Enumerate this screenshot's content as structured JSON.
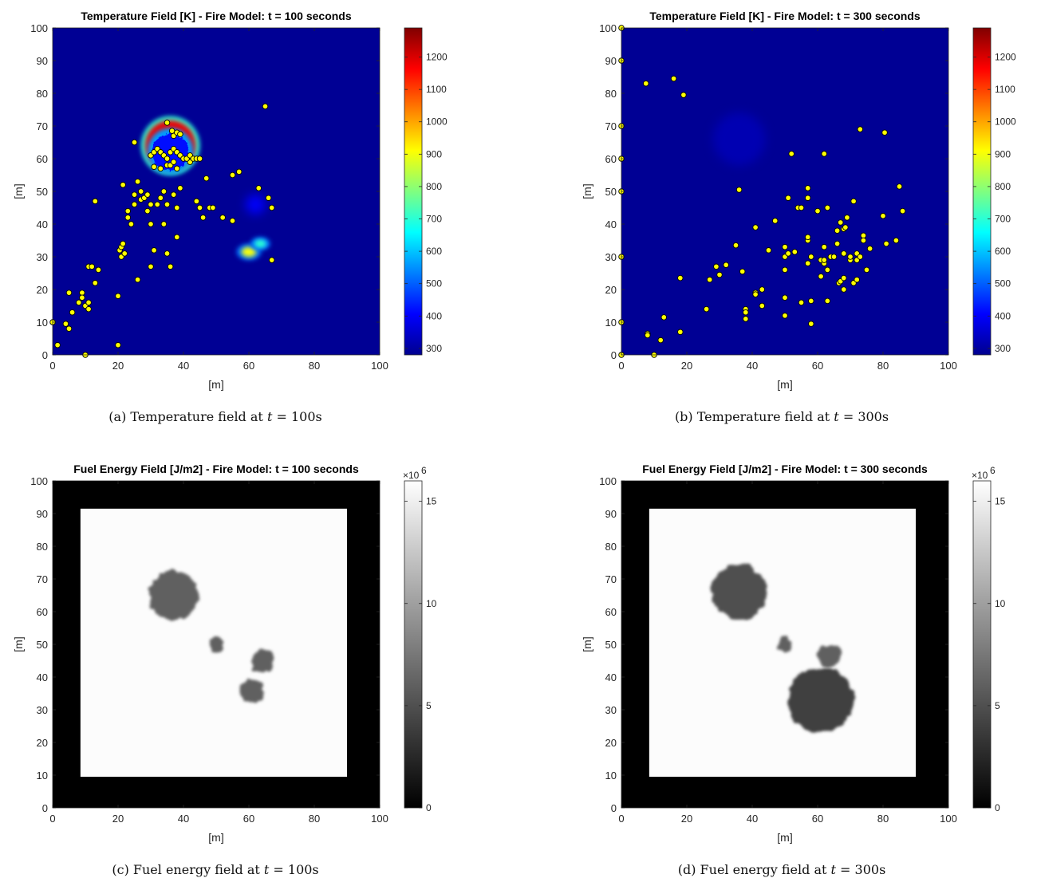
{
  "chart_data": [
    {
      "type": "heatmap",
      "title": "Temperature Field [K] - Fire Model: t = 100 seconds",
      "xlabel": "[m]",
      "ylabel": "[m]",
      "xlim": [
        0,
        100
      ],
      "ylim": [
        0,
        100
      ],
      "xticks": [
        0,
        20,
        40,
        60,
        80,
        100
      ],
      "yticks": [
        0,
        10,
        20,
        30,
        40,
        50,
        60,
        70,
        80,
        90,
        100
      ],
      "colormap": "jet",
      "clim": [
        280,
        1290
      ],
      "colorbar_ticks": [
        300,
        400,
        500,
        600,
        700,
        800,
        900,
        1000,
        1100,
        1200
      ],
      "background_value": 300,
      "hotspots": [
        {
          "x": 36,
          "y": 64,
          "r": 9,
          "peak": 1200,
          "shape": "ring"
        },
        {
          "x": 60,
          "y": 31.5,
          "r": 2.5,
          "peak": 900
        },
        {
          "x": 63.5,
          "y": 34,
          "r": 2,
          "peak": 700
        },
        {
          "x": 62,
          "y": 46,
          "r": 3,
          "peak": 400
        }
      ],
      "points": [
        [
          0,
          10
        ],
        [
          1.5,
          3
        ],
        [
          4,
          9.5
        ],
        [
          5,
          8
        ],
        [
          5,
          19
        ],
        [
          6,
          13
        ],
        [
          8,
          16
        ],
        [
          9,
          19
        ],
        [
          9,
          17.5
        ],
        [
          10,
          15
        ],
        [
          10,
          0
        ],
        [
          11,
          16
        ],
        [
          11,
          14
        ],
        [
          11,
          27
        ],
        [
          12,
          27
        ],
        [
          13,
          22
        ],
        [
          14,
          26
        ],
        [
          13,
          47
        ],
        [
          20,
          3
        ],
        [
          20,
          18
        ],
        [
          20.5,
          32
        ],
        [
          21,
          33
        ],
        [
          21,
          30
        ],
        [
          21.5,
          34
        ],
        [
          21.5,
          52
        ],
        [
          22,
          31
        ],
        [
          23,
          44
        ],
        [
          23,
          42
        ],
        [
          24,
          40
        ],
        [
          25,
          46
        ],
        [
          25,
          49
        ],
        [
          26,
          53
        ],
        [
          27,
          47.5
        ],
        [
          26,
          23
        ],
        [
          27,
          50
        ],
        [
          28,
          48
        ],
        [
          29,
          44
        ],
        [
          29,
          49
        ],
        [
          30,
          46
        ],
        [
          30,
          40
        ],
        [
          30,
          27
        ],
        [
          31,
          32
        ],
        [
          32,
          46
        ],
        [
          33,
          48
        ],
        [
          34,
          40
        ],
        [
          34,
          50
        ],
        [
          35,
          46
        ],
        [
          35,
          31
        ],
        [
          36,
          27
        ],
        [
          37,
          49
        ],
        [
          38,
          45
        ],
        [
          38,
          36
        ],
        [
          39,
          51
        ],
        [
          42,
          59
        ],
        [
          44,
          47
        ],
        [
          45,
          45
        ],
        [
          46,
          42
        ],
        [
          47,
          54
        ],
        [
          48,
          45
        ],
        [
          49,
          45
        ],
        [
          52,
          42
        ],
        [
          55,
          41
        ],
        [
          55,
          55
        ],
        [
          57,
          56
        ],
        [
          63,
          51
        ],
        [
          65,
          76
        ],
        [
          66,
          48
        ],
        [
          67,
          29
        ],
        [
          67,
          45
        ],
        [
          25,
          65
        ],
        [
          35,
          71
        ],
        [
          37,
          67
        ],
        [
          36.5,
          68.5
        ],
        [
          38,
          68
        ],
        [
          39,
          67.5
        ],
        [
          30,
          61
        ],
        [
          31,
          62
        ],
        [
          32,
          63
        ],
        [
          33,
          62
        ],
        [
          34,
          61
        ],
        [
          35,
          60
        ],
        [
          36,
          62
        ],
        [
          37,
          63
        ],
        [
          38,
          62
        ],
        [
          39,
          61
        ],
        [
          40,
          60
        ],
        [
          41,
          60
        ],
        [
          42,
          61
        ],
        [
          43,
          60
        ],
        [
          44,
          60
        ],
        [
          45,
          60
        ],
        [
          31,
          57.5
        ],
        [
          33,
          57
        ],
        [
          35,
          58
        ],
        [
          36,
          58
        ],
        [
          37,
          59
        ],
        [
          38,
          57
        ]
      ]
    },
    {
      "type": "heatmap",
      "title": "Temperature Field [K] - Fire Model: t = 300 seconds",
      "xlabel": "[m]",
      "ylabel": "[m]",
      "xlim": [
        0,
        100
      ],
      "ylim": [
        0,
        100
      ],
      "xticks": [
        0,
        20,
        40,
        60,
        80,
        100
      ],
      "yticks": [
        0,
        10,
        20,
        30,
        40,
        50,
        60,
        70,
        80,
        90,
        100
      ],
      "colormap": "jet",
      "clim": [
        280,
        1290
      ],
      "colorbar_ticks": [
        300,
        400,
        500,
        600,
        700,
        800,
        900,
        1000,
        1100,
        1200
      ],
      "background_value": 300,
      "hotspots": [
        {
          "x": 36,
          "y": 66,
          "r": 8,
          "peak": 330
        }
      ],
      "points": [
        [
          0,
          100
        ],
        [
          0,
          90
        ],
        [
          0,
          70
        ],
        [
          0,
          60
        ],
        [
          0,
          50
        ],
        [
          0,
          30
        ],
        [
          0,
          10
        ],
        [
          0,
          0
        ],
        [
          7.5,
          83
        ],
        [
          16,
          84.5
        ],
        [
          19,
          79.5
        ],
        [
          8,
          6.5
        ],
        [
          8,
          6
        ],
        [
          10,
          0
        ],
        [
          12,
          4.5
        ],
        [
          13,
          11.5
        ],
        [
          18,
          7
        ],
        [
          18,
          23.5
        ],
        [
          26,
          14
        ],
        [
          27,
          23
        ],
        [
          29,
          27
        ],
        [
          30,
          24.5
        ],
        [
          32,
          27.5
        ],
        [
          35,
          33.5
        ],
        [
          36,
          50.5
        ],
        [
          37,
          25.5
        ],
        [
          38,
          11
        ],
        [
          38,
          14
        ],
        [
          38,
          13
        ],
        [
          41,
          19
        ],
        [
          41,
          39
        ],
        [
          41,
          18.5
        ],
        [
          43,
          20
        ],
        [
          43,
          15
        ],
        [
          45,
          32
        ],
        [
          47,
          41
        ],
        [
          50,
          12
        ],
        [
          50,
          33
        ],
        [
          50,
          17.5
        ],
        [
          50,
          30
        ],
        [
          50,
          26
        ],
        [
          51,
          48
        ],
        [
          51,
          31
        ],
        [
          52,
          61.5
        ],
        [
          53,
          31.5
        ],
        [
          54,
          45
        ],
        [
          55,
          45
        ],
        [
          55,
          16
        ],
        [
          57,
          35
        ],
        [
          57,
          36
        ],
        [
          57,
          48
        ],
        [
          57,
          51
        ],
        [
          57,
          28
        ],
        [
          58,
          30
        ],
        [
          58,
          16.5
        ],
        [
          58,
          9.5
        ],
        [
          60,
          44
        ],
        [
          61,
          29
        ],
        [
          61,
          24
        ],
        [
          62,
          61.5
        ],
        [
          62,
          33
        ],
        [
          62,
          28
        ],
        [
          62,
          29
        ],
        [
          63,
          26
        ],
        [
          63,
          45
        ],
        [
          63,
          16.5
        ],
        [
          64,
          30
        ],
        [
          65,
          30
        ],
        [
          66,
          34
        ],
        [
          66,
          38
        ],
        [
          66.5,
          22
        ],
        [
          67,
          40.5
        ],
        [
          67,
          22.5
        ],
        [
          68,
          23.5
        ],
        [
          68,
          20
        ],
        [
          68,
          31
        ],
        [
          68,
          38.5
        ],
        [
          68.5,
          39
        ],
        [
          69,
          42
        ],
        [
          70,
          29
        ],
        [
          70,
          30
        ],
        [
          71,
          47
        ],
        [
          71,
          22
        ],
        [
          72,
          23
        ],
        [
          72,
          29
        ],
        [
          72,
          31
        ],
        [
          73,
          69
        ],
        [
          73,
          30
        ],
        [
          74,
          36.5
        ],
        [
          74,
          35
        ],
        [
          75,
          26
        ],
        [
          76,
          32.5
        ],
        [
          80,
          42.5
        ],
        [
          80.5,
          68
        ],
        [
          81,
          34
        ],
        [
          84,
          35
        ],
        [
          85,
          51.5
        ],
        [
          86,
          44
        ]
      ]
    },
    {
      "type": "heatmap",
      "title": "Fuel Energy Field [J/m2] - Fire Model: t = 100 seconds",
      "xlabel": "[m]",
      "ylabel": "[m]",
      "xlim": [
        0,
        100
      ],
      "ylim": [
        0,
        100
      ],
      "xticks": [
        0,
        20,
        40,
        60,
        80,
        100
      ],
      "yticks": [
        0,
        10,
        20,
        30,
        40,
        50,
        60,
        70,
        80,
        90,
        100
      ],
      "colormap": "gray",
      "clim": [
        0,
        16
      ],
      "colorbar_ticks": [
        0,
        5,
        10,
        15
      ],
      "colorbar_multiplier": "×10",
      "colorbar_exponent": "6",
      "fuel_region": {
        "x": [
          8.5,
          90
        ],
        "y": [
          9.5,
          91.5
        ],
        "value": 16
      },
      "depleted_patches": [
        {
          "x": 37,
          "y": 65,
          "r": 7.5,
          "value": 6
        },
        {
          "x": 50,
          "y": 50,
          "r": 2.2,
          "value": 6
        },
        {
          "x": 64,
          "y": 45,
          "r": 3.5,
          "value": 6
        },
        {
          "x": 61,
          "y": 35.5,
          "r": 3.8,
          "value": 6
        }
      ]
    },
    {
      "type": "heatmap",
      "title": "Fuel Energy Field [J/m2] - Fire Model: t = 300 seconds",
      "xlabel": "[m]",
      "ylabel": "[m]",
      "xlim": [
        0,
        100
      ],
      "ylim": [
        0,
        100
      ],
      "xticks": [
        0,
        20,
        40,
        60,
        80,
        100
      ],
      "yticks": [
        0,
        10,
        20,
        30,
        40,
        50,
        60,
        70,
        80,
        90,
        100
      ],
      "colormap": "gray",
      "clim": [
        0,
        16
      ],
      "colorbar_ticks": [
        0,
        5,
        10,
        15
      ],
      "colorbar_multiplier": "×10",
      "colorbar_exponent": "6",
      "fuel_region": {
        "x": [
          8.5,
          90
        ],
        "y": [
          9.5,
          91.5
        ],
        "value": 16
      },
      "depleted_patches": [
        {
          "x": 36,
          "y": 66,
          "r": 8.5,
          "value": 5
        },
        {
          "x": 50,
          "y": 50,
          "r": 2.2,
          "value": 6
        },
        {
          "x": 63.5,
          "y": 46.5,
          "r": 3.5,
          "value": 6
        },
        {
          "x": 61,
          "y": 33,
          "r": 10,
          "value": 4
        }
      ]
    }
  ],
  "captions": [
    {
      "prefix": "(a)  Temperature field at ",
      "var": "t",
      "suffix": " = 100s"
    },
    {
      "prefix": "(b)  Temperature field at ",
      "var": "t",
      "suffix": " = 300s"
    },
    {
      "prefix": "(c)  Fuel energy field at ",
      "var": "t",
      "suffix": " = 100s"
    },
    {
      "prefix": "(d)  Fuel energy field at ",
      "var": "t",
      "suffix": " = 300s"
    }
  ]
}
